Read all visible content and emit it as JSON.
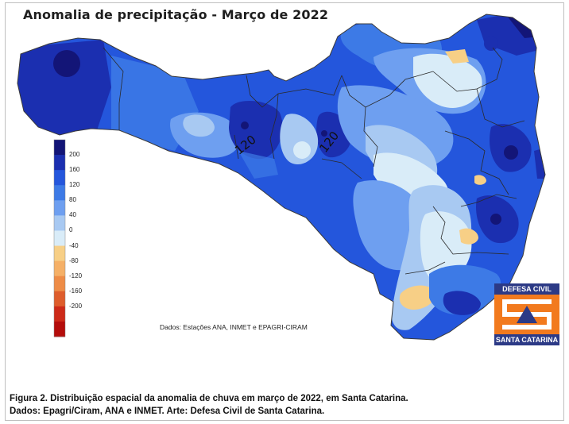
{
  "title": "Anomalia de precipitação - Março de 2022",
  "legend": {
    "ticks": [
      "200",
      "160",
      "120",
      "80",
      "40",
      "0",
      "-40",
      "-80",
      "-120",
      "-160",
      "-200"
    ],
    "colors": [
      "#131577",
      "#1b2fb0",
      "#2456dc",
      "#3d7ae6",
      "#6e9ff0",
      "#a8c9f2",
      "#d9ecf8",
      "#f7cf86",
      "#f5b067",
      "#ee8c47",
      "#de5d2c",
      "#cd2a19",
      "#b40d0b"
    ]
  },
  "contour_labels": [
    "120",
    "120"
  ],
  "source_note": "Dados: Estações ANA, INMET e EPAGRI-CIRAM",
  "logo": {
    "top": "DEFESA CIVIL",
    "bottom": "SANTA CATARINA"
  },
  "caption": {
    "line1": "Figura 2. Distribuição espacial da anomalia de chuva em março de 2022,  em Santa Catarina.",
    "line2": "Dados:  Epagri/Ciram, ANA e INMET. Arte: Defesa Civil de Santa Catarina."
  }
}
